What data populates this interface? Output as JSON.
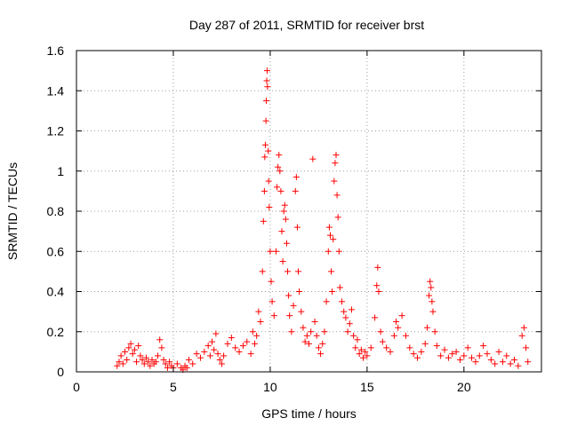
{
  "chart_data": {
    "type": "scatter",
    "title": "Day 287 of 2011, SRMTID for receiver brst",
    "xlabel": "GPS time / hours",
    "ylabel": "SRMTID / TECUs",
    "xlim": [
      0,
      24
    ],
    "ylim": [
      0,
      1.6
    ],
    "xticks": [
      0,
      5,
      10,
      15,
      20
    ],
    "xtick_labels": [
      "0",
      "5",
      "10",
      "15",
      "20"
    ],
    "yticks": [
      0,
      0.2,
      0.4,
      0.6,
      0.8,
      1.0,
      1.2,
      1.4,
      1.6
    ],
    "ytick_labels": [
      "0",
      "0.2",
      "0.4",
      "0.6",
      "0.8",
      "1",
      "1.2",
      "1.4",
      "1.6"
    ],
    "grid": true,
    "marker": "plus",
    "color": "#ff0000",
    "series": [
      {
        "name": "SRMTID",
        "points": [
          [
            2.1,
            0.03
          ],
          [
            2.2,
            0.05
          ],
          [
            2.3,
            0.08
          ],
          [
            2.4,
            0.04
          ],
          [
            2.5,
            0.1
          ],
          [
            2.6,
            0.06
          ],
          [
            2.7,
            0.12
          ],
          [
            2.8,
            0.14
          ],
          [
            2.9,
            0.09
          ],
          [
            3.0,
            0.11
          ],
          [
            3.1,
            0.05
          ],
          [
            3.2,
            0.13
          ],
          [
            3.3,
            0.08
          ],
          [
            3.4,
            0.06
          ],
          [
            3.5,
            0.04
          ],
          [
            3.6,
            0.07
          ],
          [
            3.7,
            0.05
          ],
          [
            3.8,
            0.03
          ],
          [
            3.9,
            0.06
          ],
          [
            4.0,
            0.04
          ],
          [
            4.1,
            0.05
          ],
          [
            4.2,
            0.08
          ],
          [
            4.3,
            0.16
          ],
          [
            4.4,
            0.12
          ],
          [
            4.5,
            0.06
          ],
          [
            4.6,
            0.04
          ],
          [
            4.7,
            0.02
          ],
          [
            4.8,
            0.05
          ],
          [
            4.9,
            0.03
          ],
          [
            5.0,
            0.02
          ],
          [
            5.2,
            0.04
          ],
          [
            5.4,
            0.02
          ],
          [
            5.5,
            0.01
          ],
          [
            5.6,
            0.03
          ],
          [
            5.7,
            0.02
          ],
          [
            5.8,
            0.06
          ],
          [
            6.0,
            0.04
          ],
          [
            6.2,
            0.09
          ],
          [
            6.4,
            0.07
          ],
          [
            6.6,
            0.1
          ],
          [
            6.8,
            0.13
          ],
          [
            6.9,
            0.08
          ],
          [
            7.0,
            0.15
          ],
          [
            7.1,
            0.11
          ],
          [
            7.2,
            0.19
          ],
          [
            7.3,
            0.09
          ],
          [
            7.4,
            0.06
          ],
          [
            7.5,
            0.04
          ],
          [
            7.6,
            0.08
          ],
          [
            7.8,
            0.14
          ],
          [
            8.0,
            0.17
          ],
          [
            8.2,
            0.12
          ],
          [
            8.4,
            0.1
          ],
          [
            8.6,
            0.13
          ],
          [
            8.8,
            0.15
          ],
          [
            9.0,
            0.09
          ],
          [
            9.1,
            0.2
          ],
          [
            9.2,
            0.14
          ],
          [
            9.3,
            0.18
          ],
          [
            9.4,
            0.3
          ],
          [
            9.5,
            0.25
          ],
          [
            9.6,
            0.5
          ],
          [
            9.65,
            0.75
          ],
          [
            9.7,
            0.9
          ],
          [
            9.72,
            1.07
          ],
          [
            9.75,
            1.13
          ],
          [
            9.78,
            1.25
          ],
          [
            9.8,
            1.35
          ],
          [
            9.82,
            1.45
          ],
          [
            9.84,
            1.5
          ],
          [
            9.86,
            1.42
          ],
          [
            9.9,
            1.1
          ],
          [
            9.92,
            0.95
          ],
          [
            9.95,
            0.82
          ],
          [
            10.0,
            0.6
          ],
          [
            10.05,
            0.45
          ],
          [
            10.1,
            0.35
          ],
          [
            10.2,
            0.28
          ],
          [
            10.3,
            0.6
          ],
          [
            10.35,
            0.92
          ],
          [
            10.4,
            1.02
          ],
          [
            10.45,
            1.08
          ],
          [
            10.5,
            1.0
          ],
          [
            10.55,
            0.9
          ],
          [
            10.6,
            0.7
          ],
          [
            10.65,
            0.55
          ],
          [
            10.7,
            0.8
          ],
          [
            10.75,
            0.83
          ],
          [
            10.8,
            0.76
          ],
          [
            10.85,
            0.64
          ],
          [
            10.9,
            0.5
          ],
          [
            10.95,
            0.38
          ],
          [
            11.0,
            0.28
          ],
          [
            11.1,
            0.2
          ],
          [
            11.2,
            0.33
          ],
          [
            11.3,
            0.9
          ],
          [
            11.35,
            0.97
          ],
          [
            11.4,
            0.72
          ],
          [
            11.45,
            0.5
          ],
          [
            11.5,
            0.4
          ],
          [
            11.6,
            0.3
          ],
          [
            11.7,
            0.22
          ],
          [
            11.8,
            0.15
          ],
          [
            11.9,
            0.18
          ],
          [
            12.0,
            0.14
          ],
          [
            12.1,
            0.2
          ],
          [
            12.2,
            1.06
          ],
          [
            12.3,
            0.25
          ],
          [
            12.4,
            0.18
          ],
          [
            12.5,
            0.12
          ],
          [
            12.6,
            0.09
          ],
          [
            12.7,
            0.14
          ],
          [
            12.8,
            0.2
          ],
          [
            12.9,
            0.35
          ],
          [
            13.0,
            0.6
          ],
          [
            13.05,
            0.72
          ],
          [
            13.1,
            0.68
          ],
          [
            13.15,
            0.5
          ],
          [
            13.2,
            0.4
          ],
          [
            13.25,
            0.66
          ],
          [
            13.3,
            0.95
          ],
          [
            13.35,
            1.04
          ],
          [
            13.4,
            1.08
          ],
          [
            13.45,
            0.88
          ],
          [
            13.5,
            0.77
          ],
          [
            13.55,
            0.6
          ],
          [
            13.6,
            0.42
          ],
          [
            13.7,
            0.35
          ],
          [
            13.8,
            0.3
          ],
          [
            13.9,
            0.27
          ],
          [
            14.0,
            0.2
          ],
          [
            14.1,
            0.24
          ],
          [
            14.2,
            0.31
          ],
          [
            14.3,
            0.18
          ],
          [
            14.4,
            0.12
          ],
          [
            14.5,
            0.16
          ],
          [
            14.6,
            0.09
          ],
          [
            14.7,
            0.11
          ],
          [
            14.8,
            0.07
          ],
          [
            14.9,
            0.1
          ],
          [
            15.0,
            0.08
          ],
          [
            15.2,
            0.12
          ],
          [
            15.4,
            0.27
          ],
          [
            15.5,
            0.43
          ],
          [
            15.55,
            0.52
          ],
          [
            15.6,
            0.4
          ],
          [
            15.7,
            0.2
          ],
          [
            15.8,
            0.15
          ],
          [
            16.0,
            0.12
          ],
          [
            16.2,
            0.1
          ],
          [
            16.4,
            0.18
          ],
          [
            16.5,
            0.25
          ],
          [
            16.6,
            0.22
          ],
          [
            16.8,
            0.28
          ],
          [
            17.0,
            0.18
          ],
          [
            17.2,
            0.12
          ],
          [
            17.4,
            0.09
          ],
          [
            17.6,
            0.07
          ],
          [
            17.8,
            0.1
          ],
          [
            18.0,
            0.14
          ],
          [
            18.1,
            0.22
          ],
          [
            18.2,
            0.38
          ],
          [
            18.25,
            0.45
          ],
          [
            18.3,
            0.42
          ],
          [
            18.35,
            0.35
          ],
          [
            18.4,
            0.3
          ],
          [
            18.5,
            0.2
          ],
          [
            18.6,
            0.13
          ],
          [
            18.8,
            0.08
          ],
          [
            19.0,
            0.11
          ],
          [
            19.2,
            0.07
          ],
          [
            19.4,
            0.09
          ],
          [
            19.6,
            0.1
          ],
          [
            19.8,
            0.06
          ],
          [
            20.0,
            0.08
          ],
          [
            20.2,
            0.12
          ],
          [
            20.4,
            0.07
          ],
          [
            20.6,
            0.05
          ],
          [
            20.8,
            0.08
          ],
          [
            21.0,
            0.13
          ],
          [
            21.2,
            0.09
          ],
          [
            21.4,
            0.06
          ],
          [
            21.6,
            0.04
          ],
          [
            21.8,
            0.1
          ],
          [
            22.0,
            0.05
          ],
          [
            22.2,
            0.08
          ],
          [
            22.4,
            0.04
          ],
          [
            22.6,
            0.06
          ],
          [
            22.8,
            0.03
          ],
          [
            23.0,
            0.18
          ],
          [
            23.1,
            0.22
          ],
          [
            23.2,
            0.12
          ],
          [
            23.3,
            0.05
          ]
        ]
      }
    ]
  }
}
